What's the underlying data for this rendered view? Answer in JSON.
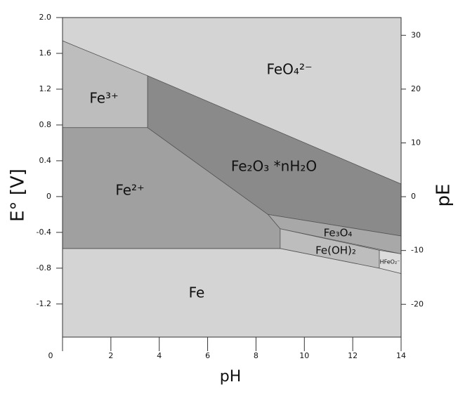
{
  "chart_data": {
    "type": "phase-diagram",
    "xlabel": "pH",
    "ylabel": "E° [V]",
    "y2label": "pE",
    "xlim": [
      0,
      14
    ],
    "ylim": [
      -1.57,
      2.0
    ],
    "y2lim": [
      -26.1,
      33.3
    ],
    "xticks": [
      0,
      2,
      4,
      6,
      8,
      10,
      12,
      14
    ],
    "yticks": [
      -1.2,
      -0.8,
      -0.4,
      0,
      0.4,
      0.8,
      1.2,
      1.6,
      {
        "value": 2,
        "label": "2.0"
      }
    ],
    "y2ticks": [
      -20,
      -10,
      0,
      10,
      20,
      30
    ],
    "background_color": "#d4d4d4",
    "regions": [
      {
        "name": "FeO₄²⁻",
        "color": "#d4d4d4",
        "points": [
          [
            0,
            1.74
          ],
          [
            14,
            0.14
          ],
          [
            14,
            2.0
          ],
          [
            0,
            2.0
          ]
        ]
      },
      {
        "name": "Fe",
        "color": "#d4d4d4",
        "points": [
          [
            0,
            -0.58
          ],
          [
            9,
            -0.58
          ],
          [
            13.1,
            -0.8
          ],
          [
            14,
            -0.86
          ],
          [
            14,
            -1.57
          ],
          [
            0,
            -1.57
          ]
        ]
      },
      {
        "name": "Fe³⁺",
        "color": "#bdbdbd",
        "points": [
          [
            0,
            1.74
          ],
          [
            3.52,
            1.35
          ],
          [
            3.52,
            0.77
          ],
          [
            0,
            0.77
          ]
        ]
      },
      {
        "name": "Fe²⁺",
        "color": "#a0a0a0",
        "points": [
          [
            0,
            0.77
          ],
          [
            3.52,
            0.77
          ],
          [
            8.5,
            -0.2
          ],
          [
            9,
            -0.36
          ],
          [
            9,
            -0.58
          ],
          [
            0,
            -0.58
          ]
        ]
      },
      {
        "name": "Fe₂O₃ *nH₂O",
        "color": "#8a8a8a",
        "points": [
          [
            3.52,
            1.35
          ],
          [
            14,
            0.14
          ],
          [
            14,
            -0.44
          ],
          [
            8.5,
            -0.2
          ],
          [
            3.52,
            0.77
          ]
        ]
      },
      {
        "name": "Fe₃O₄",
        "color": "#a8a8a8",
        "points": [
          [
            8.5,
            -0.2
          ],
          [
            14,
            -0.44
          ],
          [
            14,
            -0.64
          ],
          [
            9,
            -0.36
          ]
        ]
      },
      {
        "name": "Fe(OH)₂",
        "color": "#bdbdbd",
        "points": [
          [
            9,
            -0.36
          ],
          [
            13.1,
            -0.6
          ],
          [
            13.1,
            -0.8
          ],
          [
            9,
            -0.58
          ]
        ]
      },
      {
        "name": "HFeO₂⁻",
        "color": "#dcdcdc",
        "points": [
          [
            13.1,
            -0.6
          ],
          [
            14,
            -0.64
          ],
          [
            14,
            -0.86
          ],
          [
            13.1,
            -0.8
          ]
        ]
      }
    ]
  }
}
